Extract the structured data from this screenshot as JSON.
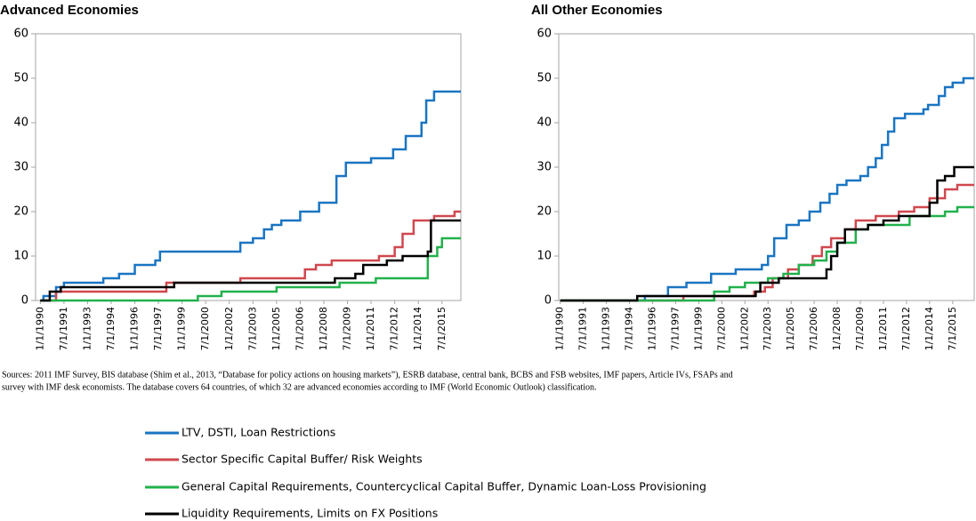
{
  "chart_data": [
    {
      "type": "line",
      "step": true,
      "title": "Advanced Economies",
      "xlim": [
        1989.7,
        2016.7
      ],
      "ylim": [
        0,
        60
      ],
      "yticks": [
        0,
        10,
        20,
        30,
        40,
        50,
        60
      ],
      "xticks": [
        {
          "value": 1990,
          "label": "1/1/1990"
        },
        {
          "value": 1991.5,
          "label": "7/1/1991"
        },
        {
          "value": 1993,
          "label": "1/1/1993"
        },
        {
          "value": 1994.5,
          "label": "7/1/1994"
        },
        {
          "value": 1996,
          "label": "1/1/1996"
        },
        {
          "value": 1997.5,
          "label": "7/1/1997"
        },
        {
          "value": 1999,
          "label": "1/1/1999"
        },
        {
          "value": 2000.5,
          "label": "7/1/2000"
        },
        {
          "value": 2002,
          "label": "1/1/2002"
        },
        {
          "value": 2003.5,
          "label": "7/1/2003"
        },
        {
          "value": 2005,
          "label": "1/1/2005"
        },
        {
          "value": 2006.5,
          "label": "7/1/2006"
        },
        {
          "value": 2008,
          "label": "1/1/2008"
        },
        {
          "value": 2009.5,
          "label": "7/1/2009"
        },
        {
          "value": 2011,
          "label": "1/1/2011"
        },
        {
          "value": 2012.5,
          "label": "7/1/2012"
        },
        {
          "value": 2014,
          "label": "1/1/2014"
        },
        {
          "value": 2015.5,
          "label": "7/1/2015"
        }
      ],
      "series": [
        {
          "name": "LTV, DSTI, Loan Restrictions",
          "color": "#1a75c2",
          "x": [
            1990,
            1990.2,
            1991,
            1991.5,
            1994,
            1995,
            1996,
            1997.3,
            1997.6,
            2001.7,
            2002.7,
            2003.5,
            2004.2,
            2004.7,
            2005.3,
            2006.5,
            2007.7,
            2008.5,
            2008.8,
            2009.4,
            2011,
            2012.4,
            2013.2,
            2014.2,
            2014.5,
            2015,
            2016.7
          ],
          "values": [
            0,
            1,
            3,
            4,
            5,
            6,
            8,
            9,
            11,
            11,
            13,
            14,
            16,
            17,
            18,
            20,
            22,
            22,
            28,
            31,
            32,
            34,
            37,
            40,
            45,
            47,
            47
          ]
        },
        {
          "name": "Sector Specific Capital Buffer/ Risk Weights",
          "color": "#d0484f",
          "x": [
            1990,
            1991,
            1997.5,
            1998,
            2002.7,
            2006.8,
            2007.5,
            2008.5,
            2011,
            2011.5,
            2012.5,
            2013,
            2013.7,
            2015,
            2016.3,
            2016.7
          ],
          "values": [
            0,
            2,
            2,
            4,
            5,
            7,
            8,
            9,
            9,
            10,
            12,
            15,
            18,
            19,
            20,
            20
          ]
        },
        {
          "name": "General Capital Requirements, Countercyclical Capital Buffer, Dynamic Loan-Loss Provisioning",
          "color": "#22b14c",
          "x": [
            1990,
            2000,
            2001.5,
            2005,
            2009,
            2011.3,
            2014.3,
            2014.6,
            2015.2,
            2015.5,
            2016.7
          ],
          "values": [
            0,
            1,
            2,
            3,
            4,
            5,
            5,
            10,
            12,
            14,
            14
          ]
        },
        {
          "name": "Liquidity Requirements, Limits on FX Positions",
          "color": "#000000",
          "x": [
            1990,
            1990.6,
            1991.3,
            1998.5,
            2008.7,
            2010,
            2010.5,
            2012,
            2013,
            2014.6,
            2014.8,
            2016.7
          ],
          "values": [
            0,
            2,
            3,
            4,
            5,
            6,
            8,
            9,
            10,
            11,
            18,
            18
          ]
        }
      ]
    },
    {
      "type": "line",
      "step": true,
      "title": "All Other Economies",
      "xlim": [
        1989.9,
        2016.9
      ],
      "ylim": [
        0,
        60
      ],
      "yticks": [
        0,
        10,
        20,
        30,
        40,
        50,
        60
      ],
      "xticks": [
        {
          "value": 1990,
          "label": "1/1/1990"
        },
        {
          "value": 1991.5,
          "label": "7/1/1991"
        },
        {
          "value": 1993,
          "label": "1/1/1993"
        },
        {
          "value": 1994.5,
          "label": "7/1/1994"
        },
        {
          "value": 1996,
          "label": "1/1/1996"
        },
        {
          "value": 1997.5,
          "label": "7/1/1997"
        },
        {
          "value": 1999,
          "label": "1/1/1999"
        },
        {
          "value": 2000.5,
          "label": "7/1/2000"
        },
        {
          "value": 2002,
          "label": "1/1/2002"
        },
        {
          "value": 2003.5,
          "label": "7/1/2003"
        },
        {
          "value": 2005,
          "label": "1/1/2005"
        },
        {
          "value": 2006.5,
          "label": "7/1/2006"
        },
        {
          "value": 2008,
          "label": "1/1/2008"
        },
        {
          "value": 2009.5,
          "label": "7/1/2009"
        },
        {
          "value": 2011,
          "label": "1/1/2011"
        },
        {
          "value": 2012.5,
          "label": "7/1/2012"
        },
        {
          "value": 2014,
          "label": "1/1/2014"
        },
        {
          "value": 2015.5,
          "label": "7/1/2015"
        }
      ],
      "series": [
        {
          "name": "LTV, DSTI, Loan Restrictions",
          "color": "#1a75c2",
          "x": [
            1990,
            1995.5,
            1997,
            1998.2,
            1999.8,
            2001.4,
            2003.1,
            2003.5,
            2003.9,
            2004.7,
            2005.5,
            2006.2,
            2006.9,
            2007.5,
            2008,
            2008.6,
            2009.5,
            2010,
            2010.5,
            2010.9,
            2011.3,
            2011.7,
            2012.4,
            2013.6,
            2013.9,
            2014.6,
            2015,
            2015.5,
            2016.2,
            2016.9
          ],
          "values": [
            0,
            1,
            3,
            4,
            6,
            7,
            8,
            10,
            14,
            17,
            18,
            20,
            22,
            24,
            26,
            27,
            28,
            30,
            32,
            35,
            38,
            41,
            42,
            43,
            44,
            46,
            48,
            49,
            50,
            50
          ]
        },
        {
          "name": "Sector Specific Capital Buffer/ Risk Weights",
          "color": "#d0484f",
          "x": [
            1990,
            1997.5,
            1998,
            2002.3,
            2002.6,
            2003.3,
            2003.8,
            2004.8,
            2005.5,
            2006.4,
            2007,
            2007.6,
            2008.5,
            2009.2,
            2010.5,
            2012,
            2013,
            2014,
            2015,
            2015.8,
            2016.9
          ],
          "values": [
            0,
            0,
            1,
            1,
            2,
            3,
            5,
            7,
            8,
            10,
            12,
            14,
            16,
            18,
            19,
            20,
            21,
            23,
            25,
            26,
            26
          ]
        },
        {
          "name": "General Capital Requirements, Countercyclical Capital Buffer, Dynamic Loan-Loss Provisioning",
          "color": "#22b14c",
          "x": [
            1990,
            1999.5,
            2000,
            2001,
            2002,
            2003.5,
            2004.5,
            2005.5,
            2006.5,
            2007.3,
            2008,
            2009.2,
            2010,
            2012.7,
            2015,
            2015.8,
            2016.9
          ],
          "values": [
            0,
            0,
            2,
            3,
            4,
            5,
            6,
            8,
            9,
            11,
            13,
            16,
            17,
            19,
            20,
            21,
            21
          ]
        },
        {
          "name": "Liquidity Requirements, Limits on FX Positions",
          "color": "#000000",
          "x": [
            1990,
            1994.8,
            1995,
            2002.5,
            2002.7,
            2003,
            2004.2,
            2007.3,
            2007.6,
            2008,
            2008.5,
            2010,
            2011,
            2012,
            2014,
            2014.5,
            2015,
            2015.6,
            2016.9
          ],
          "values": [
            0,
            0,
            1,
            1,
            2,
            4,
            5,
            7,
            10,
            13,
            16,
            17,
            18,
            19,
            22,
            27,
            28,
            30,
            30
          ]
        }
      ]
    }
  ],
  "sources": [
    "Sources: 2011 IMF Survey, BIS database (Shim et al., 2013, “Database for policy actions on housing markets”), ESRB database, central bank, BCBS and FSB websites, IMF papers, Article IVs, FSAPs and",
    "survey with IMF desk economists. The database covers 64 countries, of which 32 are advanced economies according to IMF (World Economic Outlook) classification."
  ]
}
